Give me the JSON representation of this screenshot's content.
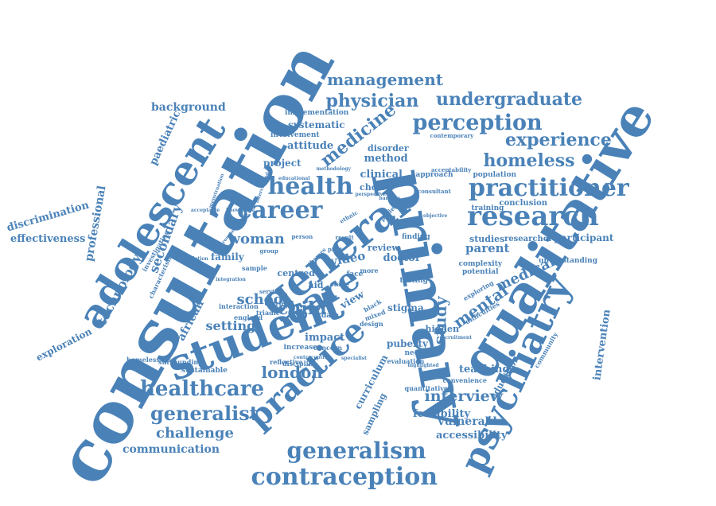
{
  "colors": {
    "word": "#4a82b8",
    "background": "#ffffff"
  },
  "words": [
    "consultation",
    "primary",
    "qualitative",
    "student",
    "general",
    "practice",
    "adolescent",
    "care",
    "psychiatry",
    "research",
    "practitioner",
    "health",
    "career",
    "perception",
    "experience",
    "homeless",
    "physician",
    "undergraduate",
    "management",
    "medicine",
    "healthcare",
    "generalist",
    "generalism",
    "contraception",
    "london",
    "woman",
    "school",
    "child",
    "setting",
    "medical",
    "mental",
    "interview",
    "technology",
    "secondary",
    "professional",
    "discrimination",
    "effectiveness",
    "exploration",
    "communication",
    "challenge",
    "curriculum",
    "sampling",
    "feasibility",
    "vulnerable",
    "accessibility",
    "teaching",
    "education",
    "intervention",
    "participant",
    "parent",
    "studies",
    "researcher",
    "conclusion",
    "training",
    "population",
    "background",
    "paediatric",
    "systematic",
    "attitude",
    "project",
    "method",
    "clinical",
    "choice",
    "disorder",
    "implementation",
    "involvement",
    "family",
    "african",
    "video",
    "doctor",
    "review",
    "study",
    "stigma",
    "puberty",
    "hidden",
    "testing",
    "impact",
    "increase",
    "concern",
    "sustainable",
    "surrounding",
    "homelessness",
    "reflective",
    "discipline",
    "evaluation",
    "negative",
    "convenience",
    "quantitative",
    "design",
    "mixed",
    "black",
    "centred",
    "aid",
    "view",
    "data",
    "face",
    "stage",
    "finding",
    "approach",
    "consultant",
    "contemporary",
    "acceptability",
    "understanding",
    "complexity",
    "potential",
    "difficulties",
    "community",
    "exploring",
    "investigating",
    "characterising",
    "triadic",
    "diaries",
    "england",
    "interaction",
    "result",
    "pilot",
    "more",
    "patient",
    "ethnic",
    "sample",
    "person",
    "group",
    "themes",
    "integration",
    "service",
    "educational",
    "contraceptive",
    "specialist",
    "highlighted",
    "recruitment",
    "menstruation",
    "intercalated",
    "acceptable",
    "completion",
    "environment",
    "methodology",
    "knowledge",
    "perspective",
    "barriers",
    "objective"
  ]
}
